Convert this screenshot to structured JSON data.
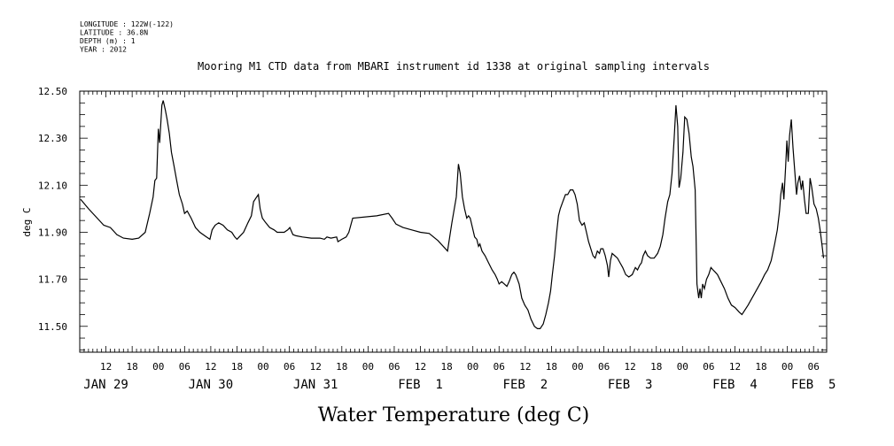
{
  "meta_lines": [
    "LONGITUDE : 122W(-122)",
    "LATITUDE : 36.8N",
    "DEPTH (m) : 1",
    "YEAR : 2012"
  ],
  "chart_data": {
    "type": "line",
    "title": "Mooring M1 CTD data from MBARI instrument id 1338 at original sampling intervals",
    "xlabel": "Water Temperature (deg C)",
    "ylabel": "deg C",
    "ylim": [
      11.39,
      12.5
    ],
    "y_ticks": [
      11.5,
      11.7,
      11.9,
      12.1,
      12.3,
      12.5
    ],
    "y_tick_labels": [
      "11.50",
      "11.70",
      "11.90",
      "12.10",
      "12.30",
      "12.50"
    ],
    "x_unit": "hours since JAN 29 00:00",
    "xlim": [
      6,
      177
    ],
    "hour_ticks": [
      {
        "h": 12,
        "label": "12"
      },
      {
        "h": 18,
        "label": "18"
      },
      {
        "h": 24,
        "label": "00"
      },
      {
        "h": 30,
        "label": "06"
      },
      {
        "h": 36,
        "label": "12"
      },
      {
        "h": 42,
        "label": "18"
      },
      {
        "h": 48,
        "label": "00"
      },
      {
        "h": 54,
        "label": "06"
      },
      {
        "h": 60,
        "label": "12"
      },
      {
        "h": 66,
        "label": "18"
      },
      {
        "h": 72,
        "label": "00"
      },
      {
        "h": 78,
        "label": "06"
      },
      {
        "h": 84,
        "label": "12"
      },
      {
        "h": 90,
        "label": "18"
      },
      {
        "h": 96,
        "label": "00"
      },
      {
        "h": 102,
        "label": "06"
      },
      {
        "h": 108,
        "label": "12"
      },
      {
        "h": 114,
        "label": "18"
      },
      {
        "h": 120,
        "label": "00"
      },
      {
        "h": 126,
        "label": "06"
      },
      {
        "h": 132,
        "label": "12"
      },
      {
        "h": 138,
        "label": "18"
      },
      {
        "h": 144,
        "label": "00"
      },
      {
        "h": 150,
        "label": "06"
      },
      {
        "h": 156,
        "label": "12"
      },
      {
        "h": 162,
        "label": "18"
      },
      {
        "h": 168,
        "label": "00"
      },
      {
        "h": 174,
        "label": "06"
      }
    ],
    "date_labels": [
      {
        "h": 12,
        "label": "JAN 29"
      },
      {
        "h": 36,
        "label": "JAN 30"
      },
      {
        "h": 60,
        "label": "JAN 31"
      },
      {
        "h": 84,
        "label": "FEB  1"
      },
      {
        "h": 108,
        "label": "FEB  2"
      },
      {
        "h": 132,
        "label": "FEB  3"
      },
      {
        "h": 156,
        "label": "FEB  4"
      },
      {
        "h": 174,
        "label": "FEB  5"
      }
    ],
    "series": [
      {
        "values": [
          [
            6.2,
            12.04
          ],
          [
            8,
            12.0
          ],
          [
            10,
            11.96
          ],
          [
            11.5,
            11.93
          ],
          [
            13,
            11.92
          ],
          [
            14.5,
            11.89
          ],
          [
            16,
            11.875
          ],
          [
            18,
            11.87
          ],
          [
            19.5,
            11.875
          ],
          [
            21,
            11.9
          ],
          [
            22,
            11.98
          ],
          [
            22.8,
            12.05
          ],
          [
            23.2,
            12.12
          ],
          [
            23.6,
            12.13
          ],
          [
            24.0,
            12.34
          ],
          [
            24.3,
            12.28
          ],
          [
            24.8,
            12.44
          ],
          [
            25.1,
            12.46
          ],
          [
            25.6,
            12.42
          ],
          [
            26.0,
            12.38
          ],
          [
            26.5,
            12.32
          ],
          [
            27.0,
            12.24
          ],
          [
            27.6,
            12.18
          ],
          [
            28.2,
            12.12
          ],
          [
            28.8,
            12.06
          ],
          [
            29.5,
            12.02
          ],
          [
            30.0,
            11.98
          ],
          [
            30.6,
            11.99
          ],
          [
            31.5,
            11.96
          ],
          [
            32.5,
            11.92
          ],
          [
            33.5,
            11.9
          ],
          [
            35,
            11.88
          ],
          [
            35.8,
            11.87
          ],
          [
            36.3,
            11.91
          ],
          [
            37,
            11.93
          ],
          [
            37.8,
            11.94
          ],
          [
            38.8,
            11.93
          ],
          [
            39.8,
            11.91
          ],
          [
            40.8,
            11.9
          ],
          [
            41.5,
            11.88
          ],
          [
            42,
            11.87
          ],
          [
            42.5,
            11.88
          ],
          [
            43.5,
            11.9
          ],
          [
            44.5,
            11.94
          ],
          [
            45.3,
            11.97
          ],
          [
            45.8,
            12.03
          ],
          [
            46.5,
            12.05
          ],
          [
            46.9,
            12.06
          ],
          [
            47.3,
            12.0
          ],
          [
            47.8,
            11.96
          ],
          [
            48.6,
            11.94
          ],
          [
            49.5,
            11.92
          ],
          [
            50.5,
            11.91
          ],
          [
            51.2,
            11.9
          ],
          [
            52,
            11.9
          ],
          [
            52.8,
            11.9
          ],
          [
            53.6,
            11.91
          ],
          [
            54.1,
            11.92
          ],
          [
            54.8,
            11.89
          ],
          [
            55.5,
            11.885
          ],
          [
            57,
            11.88
          ],
          [
            59,
            11.875
          ],
          [
            61,
            11.875
          ],
          [
            62,
            11.87
          ],
          [
            62.6,
            11.88
          ],
          [
            63.5,
            11.875
          ],
          [
            64.8,
            11.88
          ],
          [
            65.1,
            11.86
          ],
          [
            66,
            11.87
          ],
          [
            67,
            11.88
          ],
          [
            67.6,
            11.9
          ],
          [
            68.5,
            11.96
          ],
          [
            74,
            11.97
          ],
          [
            76.7,
            11.98
          ],
          [
            77.5,
            11.96
          ],
          [
            78.4,
            11.935
          ],
          [
            80,
            11.92
          ],
          [
            82,
            11.91
          ],
          [
            84,
            11.9
          ],
          [
            86,
            11.895
          ],
          [
            88,
            11.865
          ],
          [
            90.2,
            11.82
          ],
          [
            91.2,
            11.94
          ],
          [
            92.2,
            12.05
          ],
          [
            92.7,
            12.19
          ],
          [
            93.1,
            12.15
          ],
          [
            93.6,
            12.05
          ],
          [
            94.1,
            12.0
          ],
          [
            94.6,
            11.96
          ],
          [
            95,
            11.97
          ],
          [
            95.4,
            11.96
          ],
          [
            95.9,
            11.92
          ],
          [
            96.4,
            11.88
          ],
          [
            96.9,
            11.87
          ],
          [
            97.3,
            11.84
          ],
          [
            97.6,
            11.85
          ],
          [
            98.1,
            11.82
          ],
          [
            98.8,
            11.8
          ],
          [
            99.6,
            11.77
          ],
          [
            100.4,
            11.74
          ],
          [
            101.1,
            11.72
          ],
          [
            101.6,
            11.7
          ],
          [
            102,
            11.68
          ],
          [
            102.6,
            11.69
          ],
          [
            103.2,
            11.68
          ],
          [
            103.8,
            11.67
          ],
          [
            104.3,
            11.69
          ],
          [
            104.9,
            11.72
          ],
          [
            105.4,
            11.73
          ],
          [
            105.8,
            11.72
          ],
          [
            106.2,
            11.7
          ],
          [
            106.6,
            11.68
          ],
          [
            107.2,
            11.62
          ],
          [
            107.9,
            11.59
          ],
          [
            108.6,
            11.57
          ],
          [
            109.3,
            11.53
          ],
          [
            110.1,
            11.5
          ],
          [
            110.8,
            11.49
          ],
          [
            111.4,
            11.49
          ],
          [
            112.1,
            11.51
          ],
          [
            112.7,
            11.55
          ],
          [
            113.3,
            11.6
          ],
          [
            113.8,
            11.65
          ],
          [
            114.2,
            11.72
          ],
          [
            114.7,
            11.8
          ],
          [
            115.2,
            11.9
          ],
          [
            115.6,
            11.97
          ],
          [
            116,
            12.0
          ],
          [
            116.6,
            12.03
          ],
          [
            117.2,
            12.06
          ],
          [
            117.7,
            12.06
          ],
          [
            118.3,
            12.08
          ],
          [
            118.9,
            12.08
          ],
          [
            119.4,
            12.06
          ],
          [
            119.9,
            12.02
          ],
          [
            120.4,
            11.95
          ],
          [
            121,
            11.93
          ],
          [
            121.5,
            11.94
          ],
          [
            122,
            11.9
          ],
          [
            122.5,
            11.86
          ],
          [
            123,
            11.83
          ],
          [
            123.5,
            11.8
          ],
          [
            124,
            11.79
          ],
          [
            124.5,
            11.82
          ],
          [
            125,
            11.81
          ],
          [
            125.3,
            11.83
          ],
          [
            125.8,
            11.83
          ],
          [
            126.3,
            11.8
          ],
          [
            126.8,
            11.76
          ],
          [
            127.1,
            11.71
          ],
          [
            127.5,
            11.78
          ],
          [
            127.9,
            11.81
          ],
          [
            128.5,
            11.8
          ],
          [
            129.1,
            11.79
          ],
          [
            129.7,
            11.77
          ],
          [
            130.3,
            11.75
          ],
          [
            131,
            11.72
          ],
          [
            131.7,
            11.71
          ],
          [
            132.5,
            11.72
          ],
          [
            133.2,
            11.75
          ],
          [
            133.7,
            11.74
          ],
          [
            134.2,
            11.76
          ],
          [
            134.6,
            11.77
          ],
          [
            135,
            11.8
          ],
          [
            135.5,
            11.82
          ],
          [
            136,
            11.8
          ],
          [
            136.7,
            11.79
          ],
          [
            137.5,
            11.79
          ],
          [
            138.3,
            11.81
          ],
          [
            138.9,
            11.84
          ],
          [
            139.5,
            11.89
          ],
          [
            140,
            11.96
          ],
          [
            140.6,
            12.03
          ],
          [
            141.1,
            12.06
          ],
          [
            141.6,
            12.15
          ],
          [
            142.1,
            12.3
          ],
          [
            142.5,
            12.44
          ],
          [
            142.9,
            12.35
          ],
          [
            143.2,
            12.09
          ],
          [
            143.6,
            12.13
          ],
          [
            144.1,
            12.24
          ],
          [
            144.5,
            12.39
          ],
          [
            145,
            12.38
          ],
          [
            145.5,
            12.32
          ],
          [
            146,
            12.22
          ],
          [
            146.4,
            12.18
          ],
          [
            146.9,
            12.08
          ],
          [
            147.3,
            11.68
          ],
          [
            147.7,
            11.62
          ],
          [
            148,
            11.66
          ],
          [
            148.3,
            11.62
          ],
          [
            148.6,
            11.68
          ],
          [
            149,
            11.66
          ],
          [
            149.5,
            11.7
          ],
          [
            150,
            11.72
          ],
          [
            150.5,
            11.75
          ],
          [
            151,
            11.74
          ],
          [
            151.5,
            11.73
          ],
          [
            152,
            11.72
          ],
          [
            152.8,
            11.69
          ],
          [
            153.6,
            11.66
          ],
          [
            154.4,
            11.62
          ],
          [
            155.2,
            11.59
          ],
          [
            156,
            11.58
          ],
          [
            157,
            11.56
          ],
          [
            157.6,
            11.55
          ],
          [
            159,
            11.59
          ],
          [
            160.5,
            11.64
          ],
          [
            162,
            11.69
          ],
          [
            162.8,
            11.72
          ],
          [
            163.5,
            11.74
          ],
          [
            164.3,
            11.78
          ],
          [
            165.1,
            11.85
          ],
          [
            165.7,
            11.91
          ],
          [
            166.2,
            11.99
          ],
          [
            166.5,
            12.06
          ],
          [
            166.9,
            12.11
          ],
          [
            167.2,
            12.04
          ],
          [
            167.6,
            12.18
          ],
          [
            167.9,
            12.29
          ],
          [
            168.2,
            12.2
          ],
          [
            168.5,
            12.31
          ],
          [
            168.9,
            12.38
          ],
          [
            169.3,
            12.26
          ],
          [
            169.7,
            12.16
          ],
          [
            170.1,
            12.06
          ],
          [
            170.4,
            12.11
          ],
          [
            170.8,
            12.14
          ],
          [
            171.2,
            12.08
          ],
          [
            171.5,
            12.12
          ],
          [
            171.9,
            12.04
          ],
          [
            172.3,
            11.98
          ],
          [
            172.8,
            11.98
          ],
          [
            173.2,
            12.13
          ],
          [
            173.6,
            12.09
          ],
          [
            174.1,
            12.02
          ],
          [
            174.6,
            12.0
          ],
          [
            175.1,
            11.96
          ],
          [
            175.5,
            11.91
          ],
          [
            175.9,
            11.85
          ],
          [
            176.3,
            11.79
          ]
        ]
      }
    ]
  }
}
